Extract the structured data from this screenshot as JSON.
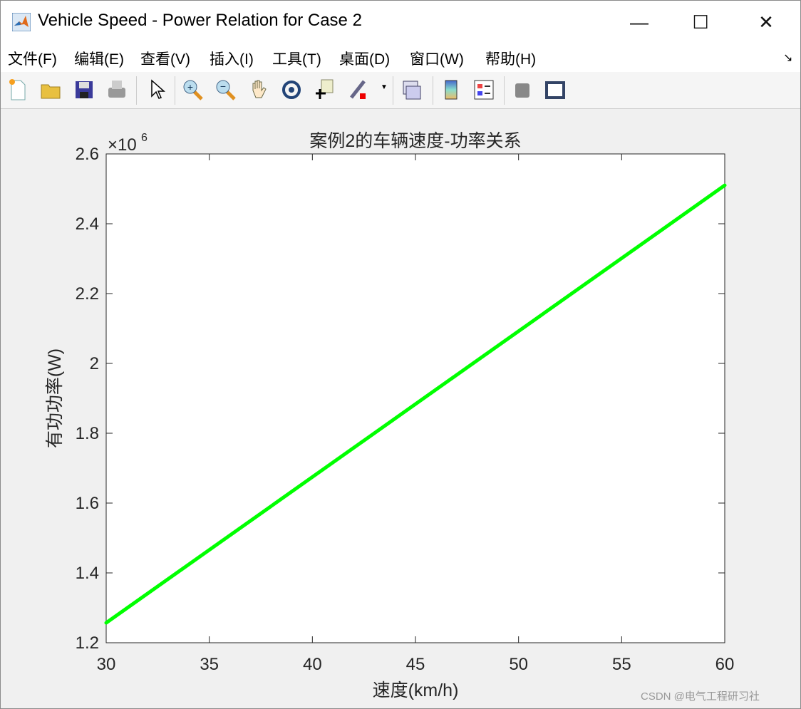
{
  "window": {
    "title": "Vehicle Speed - Power Relation for Case 2",
    "minimize": "—",
    "maximize": "☐",
    "close": "✕"
  },
  "menu": [
    {
      "label": "文件(F)"
    },
    {
      "label": "编辑(E)"
    },
    {
      "label": "查看(V)"
    },
    {
      "label": "插入(I)"
    },
    {
      "label": "工具(T)"
    },
    {
      "label": "桌面(D)"
    },
    {
      "label": "窗口(W)"
    },
    {
      "label": "帮助(H)"
    }
  ],
  "menu_dock_icon": "↘",
  "toolbar": [
    "new-figure-icon",
    "open-icon",
    "save-icon",
    "print-icon",
    "select-arrow-icon",
    "zoom-in-icon",
    "zoom-out-icon",
    "pan-hand-icon",
    "rotate-3d-icon",
    "data-cursor-icon",
    "brush-icon",
    "link-plot-icon",
    "colorbar-icon",
    "legend-icon",
    "hide-plot-tools-icon",
    "show-plot-tools-icon"
  ],
  "watermark": "CSDN @电气工程研习社",
  "chart_data": {
    "type": "line",
    "title": "案例2的车辆速度-功率关系",
    "xlabel": "速度(km/h)",
    "ylabel": "有功功率(W)",
    "y_exponent_label": "×10",
    "y_exponent": "6",
    "xlim": [
      30,
      60
    ],
    "ylim": [
      1200000.0,
      2600000.0
    ],
    "xticks": [
      "30",
      "35",
      "40",
      "45",
      "50",
      "55",
      "60"
    ],
    "yticks": [
      "1.2",
      "1.4",
      "1.6",
      "1.8",
      "2",
      "2.2",
      "2.4",
      "2.6"
    ],
    "grid": false,
    "series": [
      {
        "x": [
          30,
          60
        ],
        "y": [
          1257000,
          2510000
        ],
        "color": "#00ff00"
      }
    ]
  }
}
